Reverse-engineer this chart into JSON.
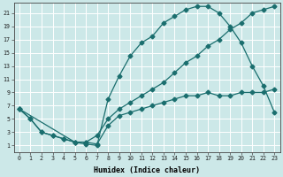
{
  "xlabel": "Humidex (Indice chaleur)",
  "bg_color": "#cce8e8",
  "grid_color": "#ffffff",
  "line_color": "#1a6e6e",
  "xlim": [
    -0.5,
    23.5
  ],
  "ylim": [
    0.0,
    22.5
  ],
  "xticks": [
    0,
    1,
    2,
    3,
    4,
    5,
    6,
    7,
    8,
    9,
    10,
    11,
    12,
    13,
    14,
    15,
    16,
    17,
    18,
    19,
    20,
    21,
    22,
    23
  ],
  "yticks": [
    1,
    3,
    5,
    7,
    9,
    11,
    13,
    15,
    17,
    19,
    21
  ],
  "curve_upper_x": [
    0,
    1,
    2,
    3,
    4,
    5,
    6,
    7,
    8,
    9,
    10,
    11,
    12,
    13,
    14,
    15,
    16,
    17,
    18,
    19,
    20,
    21,
    22,
    23
  ],
  "curve_upper_y": [
    6.5,
    5.0,
    3.0,
    2.5,
    2.0,
    1.5,
    1.2,
    1.0,
    8.0,
    11.5,
    14.5,
    16.5,
    17.5,
    19.5,
    20.5,
    21.5,
    22.0,
    22.0,
    21.0,
    19.0,
    16.5,
    13.0,
    10.0,
    6.0
  ],
  "curve_lower_x": [
    0,
    1,
    2,
    3,
    4,
    5,
    6,
    7,
    8,
    9,
    10,
    11,
    12,
    13,
    14,
    15,
    16,
    17,
    18,
    19,
    20,
    21,
    22,
    23
  ],
  "curve_lower_y": [
    6.5,
    5.0,
    3.0,
    2.5,
    2.0,
    1.5,
    1.5,
    1.2,
    4.0,
    5.5,
    6.0,
    6.5,
    7.0,
    7.5,
    8.0,
    8.5,
    8.5,
    9.0,
    8.5,
    8.5,
    9.0,
    9.0,
    9.0,
    9.5
  ],
  "curve_mid_x": [
    0,
    5,
    6,
    7,
    8,
    9,
    10,
    11,
    12,
    13,
    14,
    15,
    16,
    17,
    18,
    19,
    20,
    21,
    22,
    23
  ],
  "curve_mid_y": [
    6.5,
    1.5,
    1.5,
    2.5,
    5.0,
    6.5,
    7.5,
    8.5,
    9.5,
    10.5,
    12.0,
    13.5,
    14.5,
    16.0,
    17.0,
    18.5,
    19.5,
    21.0,
    21.5,
    22.0
  ],
  "marker": "D",
  "markersize": 2.5,
  "linewidth": 0.9
}
